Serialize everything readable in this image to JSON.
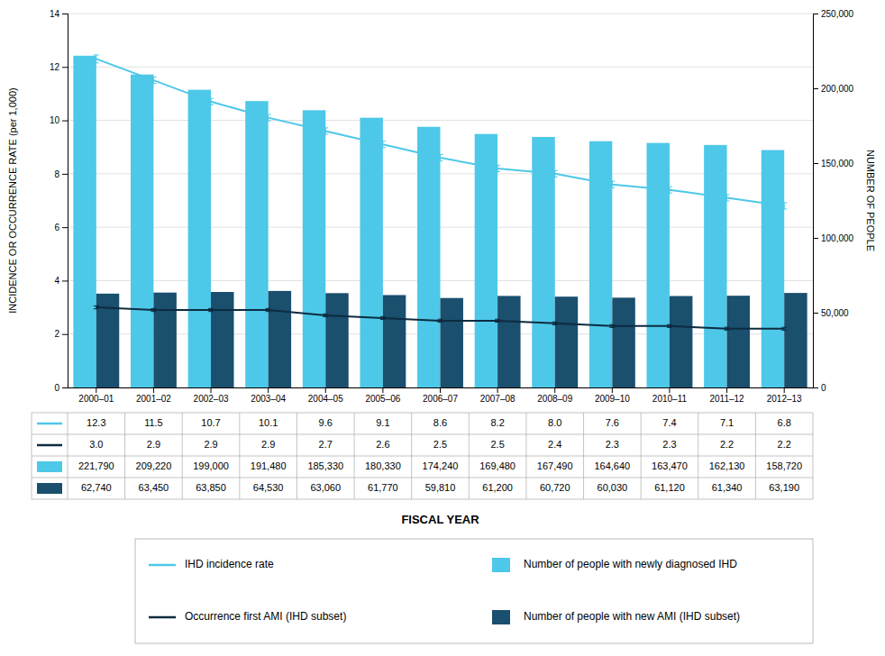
{
  "chart_data": {
    "type": "bar",
    "xlabel": "FISCAL YEAR",
    "ylabel": "INCIDENCE OR OCCURRENCE RATE (per 1,000)",
    "y2label": "NUMBER OF PEOPLE",
    "categories": [
      "2000–01",
      "2001–02",
      "2002–03",
      "2003–04",
      "2004–05",
      "2005–06",
      "2006–07",
      "2007–08",
      "2008–09",
      "2009–10",
      "2010–11",
      "2011–12",
      "2012–13"
    ],
    "series": [
      {
        "name": "IHD incidence rate",
        "type": "line",
        "color": "#4DC8E8",
        "values": [
          12.3,
          11.5,
          10.7,
          10.1,
          9.6,
          9.1,
          8.6,
          8.2,
          8.0,
          7.6,
          7.4,
          7.1,
          6.8
        ],
        "errors": [
          0.15,
          0.12,
          0.12,
          0.12,
          0.12,
          0.12,
          0.12,
          0.12,
          0.12,
          0.12,
          0.12,
          0.12,
          0.12
        ],
        "value_labels": [
          "12.3",
          "11.5",
          "10.7",
          "10.1",
          "9.6",
          "9.1",
          "8.6",
          "8.2",
          "8.0",
          "7.6",
          "7.4",
          "7.1",
          "6.8"
        ]
      },
      {
        "name": "Occurrence first AMI (IHD subset)",
        "type": "line",
        "color": "#0D2B40",
        "values": [
          3.0,
          2.9,
          2.9,
          2.9,
          2.7,
          2.6,
          2.5,
          2.5,
          2.4,
          2.3,
          2.3,
          2.2,
          2.2
        ],
        "errors": [
          0.055,
          0.055,
          0.055,
          0.055,
          0.055,
          0.055,
          0.055,
          0.055,
          0.055,
          0.055,
          0.055,
          0.055,
          0.055
        ],
        "value_labels": [
          "3.0",
          "2.9",
          "2.9",
          "2.9",
          "2.7",
          "2.6",
          "2.5",
          "2.5",
          "2.4",
          "2.3",
          "2.3",
          "2.2",
          "2.2"
        ]
      },
      {
        "name": "Number of people with newly diagnosed IHD",
        "type": "bar",
        "axis": "y2",
        "color": "#4DC8E8",
        "values": [
          221790,
          209220,
          199000,
          191480,
          185330,
          180330,
          174240,
          169480,
          167490,
          164640,
          163470,
          162130,
          158720
        ],
        "value_labels": [
          "221,790",
          "209,220",
          "199,000",
          "191,480",
          "185,330",
          "180,330",
          "174,240",
          "169,480",
          "167,490",
          "164,640",
          "163,470",
          "162,130",
          "158,720"
        ]
      },
      {
        "name": "Number of people with new AMI (IHD subset)",
        "type": "bar",
        "axis": "y2",
        "color": "#1A4F6E",
        "values": [
          62740,
          63450,
          63850,
          64530,
          63060,
          61770,
          59810,
          61200,
          60720,
          60030,
          61120,
          61340,
          63190
        ],
        "value_labels": [
          "62,740",
          "63,450",
          "63,850",
          "64,530",
          "63,060",
          "61,770",
          "59,810",
          "61,200",
          "60,720",
          "60,030",
          "61,120",
          "61,340",
          "63,190"
        ]
      }
    ],
    "ylim": [
      0,
      14
    ],
    "yticks": [
      0,
      2,
      4,
      6,
      8,
      10,
      12,
      14
    ],
    "y2lim": [
      0,
      250000
    ],
    "y2ticks": [
      0,
      {
        "value": 50000,
        "label": "50,000"
      },
      {
        "value": 100000,
        "label": "100,000"
      },
      {
        "value": 150000,
        "label": "150,000"
      },
      {
        "value": 200000,
        "label": "200,000"
      },
      {
        "value": 250000,
        "label": "250,000"
      }
    ],
    "grid": true,
    "data_labels": true
  }
}
